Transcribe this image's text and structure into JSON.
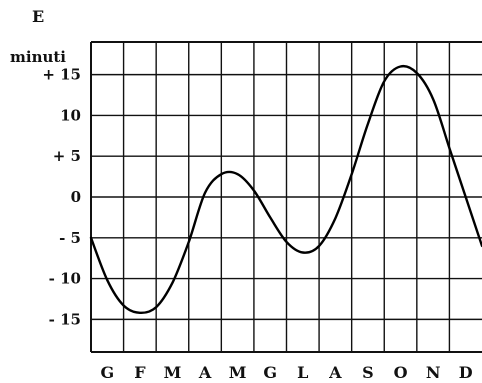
{
  "chart_data": {
    "type": "line",
    "title": "E",
    "ylabel": "minuti",
    "categories": [
      "G",
      "F",
      "M",
      "A",
      "M",
      "G",
      "L",
      "A",
      "S",
      "O",
      "N",
      "D"
    ],
    "ytick_labels": [
      "+ 15",
      "10",
      "+ 5",
      "0",
      "- 5",
      "- 10",
      "- 15"
    ],
    "yticks": [
      15,
      10,
      5,
      0,
      -5,
      -10,
      -15
    ],
    "ylim": [
      -19,
      19
    ],
    "xlim": [
      0,
      12
    ],
    "grid": true,
    "series": [
      {
        "x": [
          0,
          0.5,
          1,
          1.5,
          2,
          2.5,
          3,
          3.5,
          4,
          4.5,
          5,
          5.5,
          6,
          6.5,
          7,
          7.5,
          8,
          8.5,
          9,
          9.5,
          10,
          10.5,
          11,
          11.5,
          12
        ],
        "values": [
          -5,
          -10.2,
          -13.3,
          -14.2,
          -13.5,
          -10.5,
          -5.5,
          0.5,
          2.8,
          2.8,
          0.8,
          -2.5,
          -5.5,
          -6.8,
          -6,
          -2.6,
          2.8,
          9,
          14.2,
          16,
          15.2,
          12,
          6,
          0,
          -6
        ]
      }
    ]
  }
}
